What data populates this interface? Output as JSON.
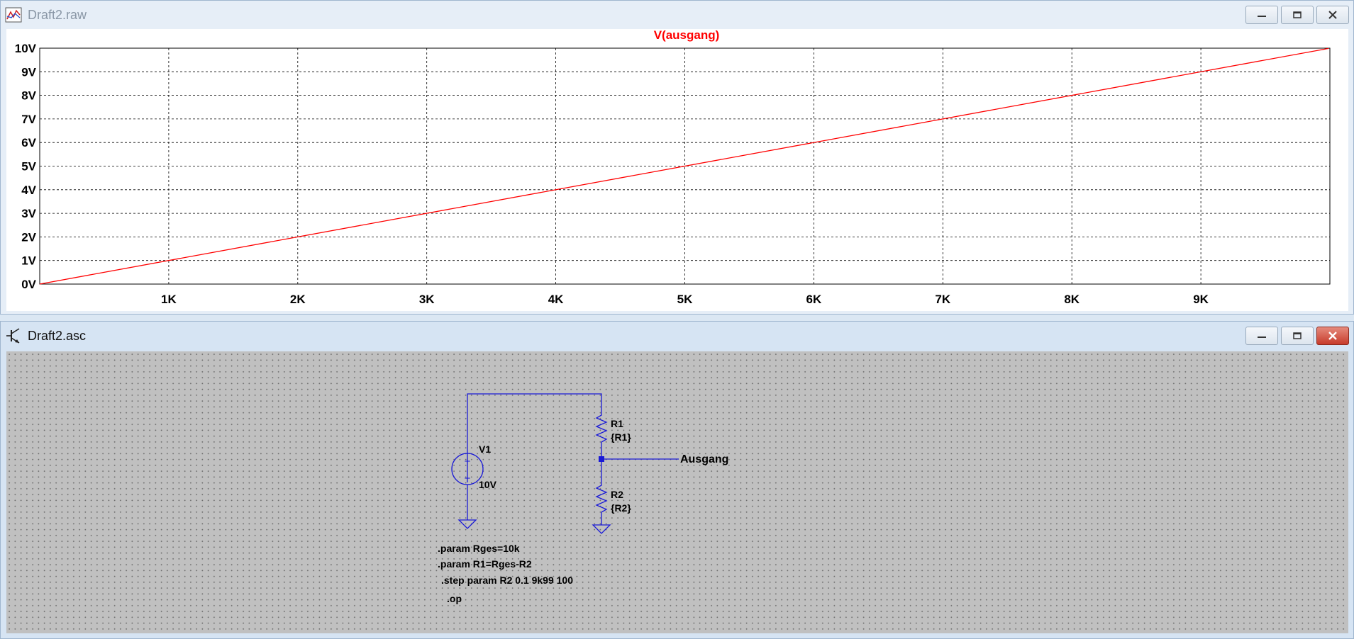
{
  "plot_window": {
    "title": "Draft2.raw",
    "trace_label": "V(ausgang)",
    "trace_color": "#ff0000"
  },
  "schematic_window": {
    "title": "Draft2.asc",
    "wire_color": "#1a1ad6",
    "components": {
      "source_name": "V1",
      "source_value": "10V",
      "r1_name": "R1",
      "r1_value": "{R1}",
      "r2_name": "R2",
      "r2_value": "{R2}",
      "net_label": "Ausgang"
    },
    "directives": [
      ".param Rges=10k",
      ".param R1=Rges-R2",
      ".step param R2 0.1 9k99 100",
      ".op"
    ]
  },
  "chart_data": {
    "type": "line",
    "title": "V(ausgang)",
    "xlabel": "",
    "ylabel": "",
    "xlim": [
      0,
      10000
    ],
    "ylim": [
      0,
      10
    ],
    "grid": true,
    "x_tick_labels": [
      "1K",
      "2K",
      "3K",
      "4K",
      "5K",
      "6K",
      "7K",
      "8K",
      "9K"
    ],
    "x_tick_values": [
      1000,
      2000,
      3000,
      4000,
      5000,
      6000,
      7000,
      8000,
      9000
    ],
    "y_tick_labels": [
      "0V",
      "1V",
      "2V",
      "3V",
      "4V",
      "5V",
      "6V",
      "7V",
      "8V",
      "9V",
      "10V"
    ],
    "y_tick_values": [
      0,
      1,
      2,
      3,
      4,
      5,
      6,
      7,
      8,
      9,
      10
    ],
    "series": [
      {
        "name": "V(ausgang)",
        "x": [
          0.1,
          9990
        ],
        "y": [
          0.0001,
          9.99
        ]
      }
    ]
  }
}
